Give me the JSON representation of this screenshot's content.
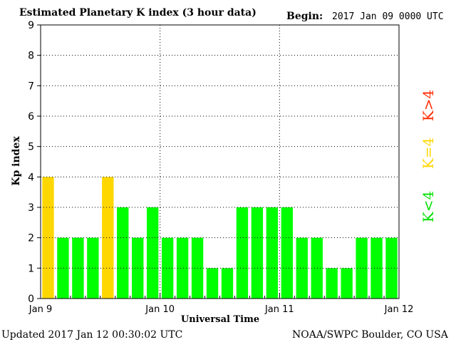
{
  "header": {
    "title": "Estimated Planetary K index (3 hour data)",
    "begin_label": "Begin:",
    "begin_value": "2017 Jan 09 0000 UTC"
  },
  "footer": {
    "updated": "Updated 2017 Jan 12 00:30:02 UTC",
    "source": "NOAA/SWPC Boulder, CO USA"
  },
  "legend": {
    "high": "K>4",
    "equal": "K=4",
    "low": "K<4"
  },
  "colors": {
    "low": "#00ff00",
    "equal": "#ffd700",
    "high": "#ff2a00",
    "axis": "#000000",
    "grid": "#000000"
  },
  "chart_data": {
    "type": "bar",
    "title": "Estimated Planetary K index (3 hour data)",
    "xlabel": "Universal Time",
    "ylabel": "Kp index",
    "ylim": [
      0,
      9
    ],
    "yticks": [
      0,
      1,
      2,
      3,
      4,
      5,
      6,
      7,
      8,
      9
    ],
    "xtick_labels": [
      "Jan 9",
      "Jan 10",
      "Jan 11",
      "Jan 12"
    ],
    "bars_per_day": 8,
    "values": [
      4,
      2,
      2,
      2,
      4,
      3,
      2,
      3,
      2,
      2,
      2,
      1,
      1,
      3,
      3,
      3,
      3,
      2,
      2,
      1,
      1,
      2,
      2,
      2
    ],
    "grid": true,
    "grid_style": "dotted"
  }
}
